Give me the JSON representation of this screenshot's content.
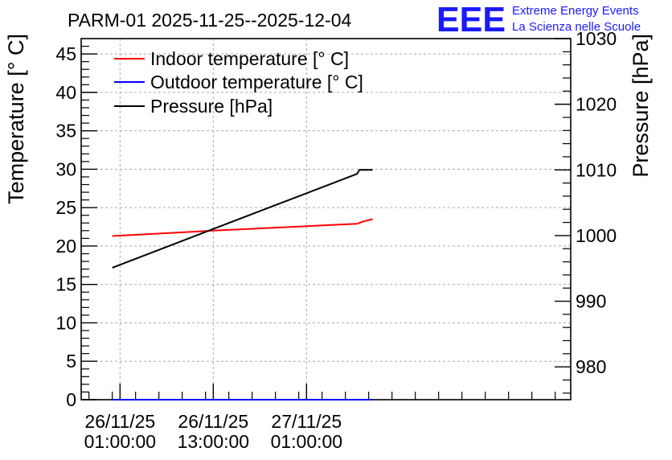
{
  "chart_data": {
    "type": "line",
    "title": "PARM-01 2025-11-25--2025-12-04",
    "ylabel": "Temperature [° C]",
    "y2label": "Pressure [hPa]",
    "ylim": [
      0,
      47
    ],
    "y2lim": [
      975,
      1030
    ],
    "xlim": [
      -5,
      58
    ],
    "x_unit": "hours since 26/11/25 01:00:00",
    "x_ticks": [
      {
        "x": 0,
        "date": "26/11/25",
        "time": "01:00:00"
      },
      {
        "x": 12,
        "date": "26/11/25",
        "time": "13:00:00"
      },
      {
        "x": 24,
        "date": "27/11/25",
        "time": "01:00:00"
      }
    ],
    "y_ticks": [
      "0",
      "5",
      "10",
      "15",
      "20",
      "25",
      "30",
      "35",
      "40",
      "45"
    ],
    "y2_ticks": [
      "980",
      "990",
      "1000",
      "1010",
      "1020",
      "1030"
    ],
    "series": [
      {
        "name": "Indoor temperature [° C]",
        "color": "#ff0000",
        "axis": "left",
        "x": [
          -1,
          12,
          30.5,
          31.3,
          32.5
        ],
        "y": [
          21.3,
          22.0,
          22.9,
          23.2,
          23.5
        ]
      },
      {
        "name": "Outdoor temperature [° C]",
        "color": "#0000ff",
        "axis": "left",
        "x": [
          -1,
          32.5
        ],
        "y": [
          0,
          0
        ]
      },
      {
        "name": "Pressure [hPa]",
        "color": "#000000",
        "axis": "right",
        "x": [
          -1,
          12,
          30.5,
          30.8,
          32.5
        ],
        "y": [
          995.1,
          1001.0,
          1009.4,
          1010.0,
          1010.0
        ]
      }
    ],
    "grid": true,
    "legend_position": "top-left"
  },
  "logo": {
    "mark": "EEE",
    "line1": "Extreme Energy Events",
    "line2": "La Scienza nelle Scuole"
  },
  "colors": {
    "axis": "#000000",
    "grid": "#aaaaaa",
    "logo": "#1a1aff"
  }
}
